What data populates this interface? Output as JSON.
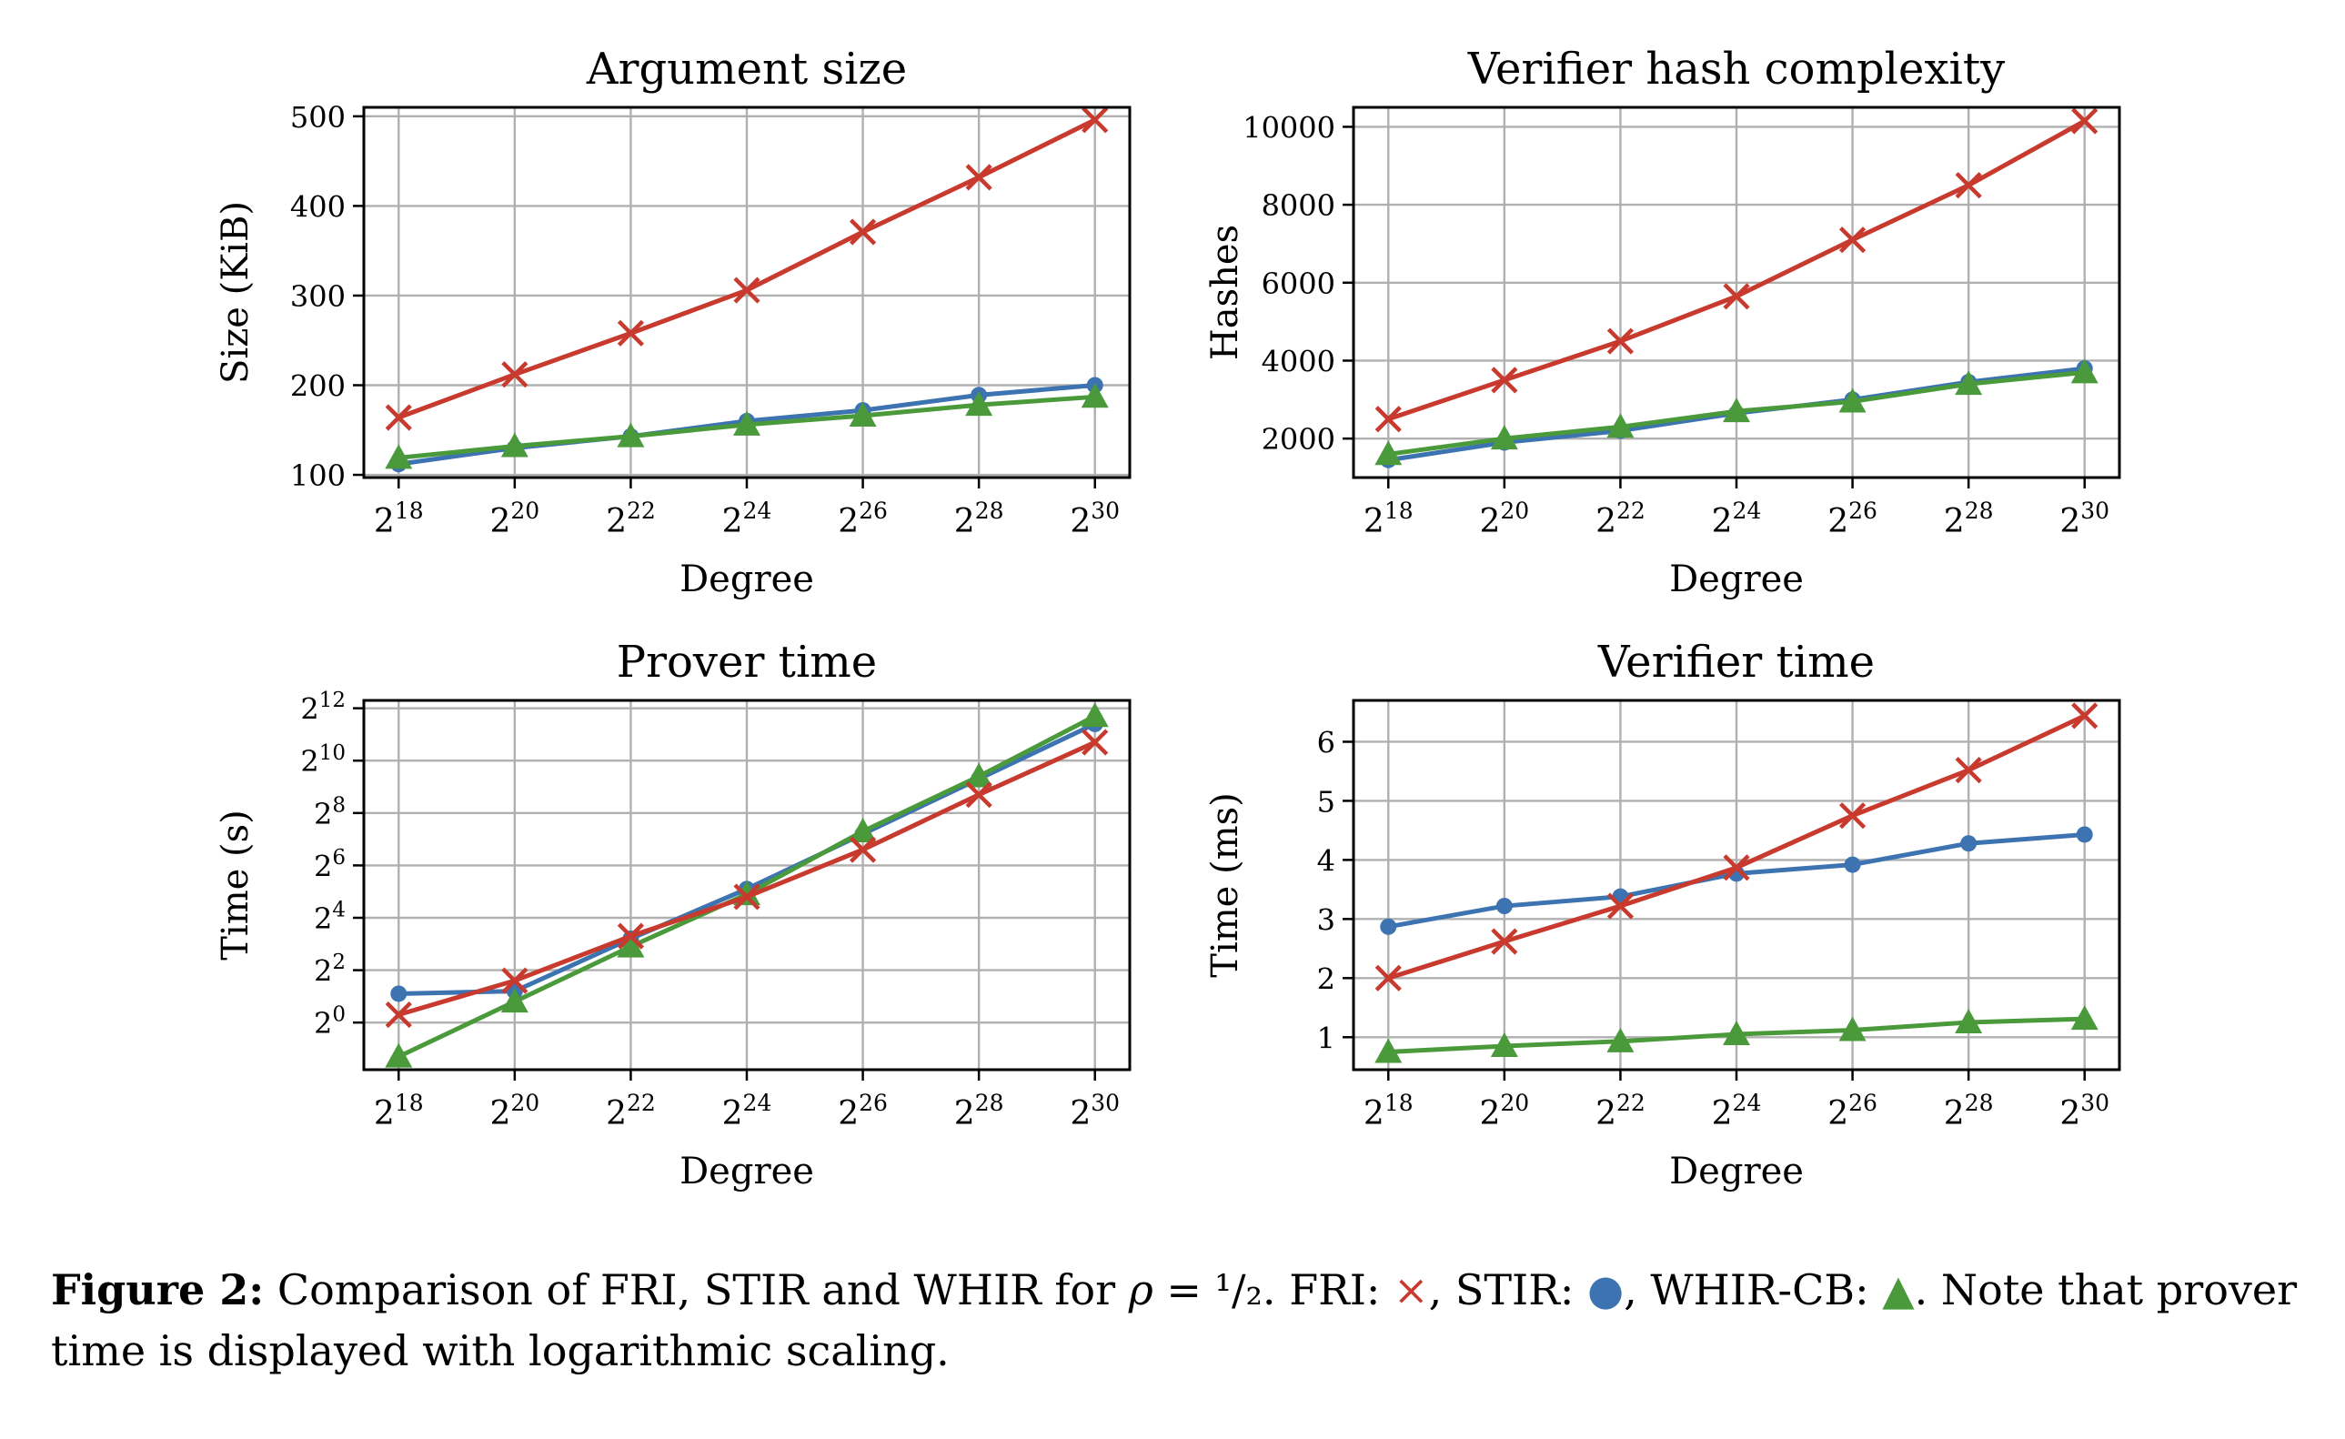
{
  "colors": {
    "fri": "#c8392e",
    "stir": "#3c73b0",
    "whir": "#4a9a3c",
    "grid": "#b0b0b0"
  },
  "chart_data": [
    {
      "type": "line",
      "title": "Argument size",
      "xlabel": "Degree",
      "ylabel": "Size (KiB)",
      "x": [
        18,
        20,
        22,
        24,
        26,
        28,
        30
      ],
      "x_tick_labels": [
        [
          "2",
          "18"
        ],
        [
          "2",
          "20"
        ],
        [
          "2",
          "22"
        ],
        [
          "2",
          "24"
        ],
        [
          "2",
          "26"
        ],
        [
          "2",
          "28"
        ],
        [
          "2",
          "30"
        ]
      ],
      "xlim": [
        17.4,
        30.6
      ],
      "ylim": [
        97,
        510
      ],
      "y_ticks": [
        100,
        200,
        300,
        400,
        500
      ],
      "y_tick_labels": [
        [
          "100",
          ""
        ],
        [
          "200",
          ""
        ],
        [
          "300",
          ""
        ],
        [
          "400",
          ""
        ],
        [
          "500",
          ""
        ]
      ],
      "grid": true,
      "series": [
        {
          "key": "stir",
          "marker": "dot",
          "values": [
            112,
            130,
            143,
            160,
            172,
            189,
            200
          ]
        },
        {
          "key": "whir",
          "marker": "triangle",
          "values": [
            119,
            132,
            143,
            156,
            166,
            178,
            187
          ]
        },
        {
          "key": "fri",
          "marker": "x",
          "values": [
            164,
            212,
            258,
            306,
            371,
            432,
            496
          ]
        }
      ]
    },
    {
      "type": "line",
      "title": "Verifier hash complexity",
      "xlabel": "Degree",
      "ylabel": "Hashes",
      "x": [
        18,
        20,
        22,
        24,
        26,
        28,
        30
      ],
      "x_tick_labels": [
        [
          "2",
          "18"
        ],
        [
          "2",
          "20"
        ],
        [
          "2",
          "22"
        ],
        [
          "2",
          "24"
        ],
        [
          "2",
          "26"
        ],
        [
          "2",
          "28"
        ],
        [
          "2",
          "30"
        ]
      ],
      "xlim": [
        17.4,
        30.6
      ],
      "ylim": [
        1000,
        10500
      ],
      "y_ticks": [
        2000,
        4000,
        6000,
        8000,
        10000
      ],
      "y_tick_labels": [
        [
          "2000",
          ""
        ],
        [
          "4000",
          ""
        ],
        [
          "6000",
          ""
        ],
        [
          "8000",
          ""
        ],
        [
          "10000",
          ""
        ]
      ],
      "grid": true,
      "series": [
        {
          "key": "stir",
          "marker": "dot",
          "values": [
            1450,
            1900,
            2200,
            2650,
            3000,
            3450,
            3800
          ]
        },
        {
          "key": "whir",
          "marker": "triangle",
          "values": [
            1600,
            2000,
            2300,
            2700,
            2950,
            3400,
            3700
          ]
        },
        {
          "key": "fri",
          "marker": "x",
          "values": [
            2500,
            3500,
            4500,
            5650,
            7100,
            8500,
            10150
          ]
        }
      ]
    },
    {
      "type": "line",
      "title": "Prover time",
      "xlabel": "Degree",
      "ylabel": "Time (s)",
      "log_scale_y": 2,
      "x": [
        18,
        20,
        22,
        24,
        26,
        28,
        30
      ],
      "x_tick_labels": [
        [
          "2",
          "18"
        ],
        [
          "2",
          "20"
        ],
        [
          "2",
          "22"
        ],
        [
          "2",
          "24"
        ],
        [
          "2",
          "26"
        ],
        [
          "2",
          "28"
        ],
        [
          "2",
          "30"
        ]
      ],
      "xlim": [
        17.4,
        30.6
      ],
      "ylim": [
        -1.8,
        12.3
      ],
      "y_ticks": [
        0,
        2,
        4,
        6,
        8,
        10,
        12
      ],
      "y_tick_labels": [
        [
          "2",
          "0"
        ],
        [
          "2",
          "2"
        ],
        [
          "2",
          "4"
        ],
        [
          "2",
          "6"
        ],
        [
          "2",
          "8"
        ],
        [
          "2",
          "10"
        ],
        [
          "2",
          "12"
        ]
      ],
      "grid": true,
      "series": [
        {
          "key": "stir",
          "marker": "dot",
          "values": [
            1.1,
            1.2,
            3.2,
            5.1,
            7.2,
            9.3,
            11.4
          ]
        },
        {
          "key": "whir",
          "marker": "triangle",
          "values": [
            -1.3,
            0.8,
            2.9,
            4.9,
            7.3,
            9.4,
            11.7
          ]
        },
        {
          "key": "fri",
          "marker": "x",
          "values": [
            0.3,
            1.6,
            3.3,
            4.8,
            6.6,
            8.7,
            10.7
          ]
        }
      ]
    },
    {
      "type": "line",
      "title": "Verifier time",
      "xlabel": "Degree",
      "ylabel": "Time (ms)",
      "x": [
        18,
        20,
        22,
        24,
        26,
        28,
        30
      ],
      "x_tick_labels": [
        [
          "2",
          "18"
        ],
        [
          "2",
          "20"
        ],
        [
          "2",
          "22"
        ],
        [
          "2",
          "24"
        ],
        [
          "2",
          "26"
        ],
        [
          "2",
          "28"
        ],
        [
          "2",
          "30"
        ]
      ],
      "xlim": [
        17.4,
        30.6
      ],
      "ylim": [
        0.45,
        6.7
      ],
      "y_ticks": [
        1,
        2,
        3,
        4,
        5,
        6
      ],
      "y_tick_labels": [
        [
          "1",
          ""
        ],
        [
          "2",
          ""
        ],
        [
          "3",
          ""
        ],
        [
          "4",
          ""
        ],
        [
          "5",
          ""
        ],
        [
          "6",
          ""
        ]
      ],
      "grid": true,
      "series": [
        {
          "key": "stir",
          "marker": "dot",
          "values": [
            2.87,
            3.22,
            3.38,
            3.77,
            3.92,
            4.28,
            4.43
          ]
        },
        {
          "key": "whir",
          "marker": "triangle",
          "values": [
            0.75,
            0.85,
            0.93,
            1.05,
            1.12,
            1.25,
            1.31
          ]
        },
        {
          "key": "fri",
          "marker": "x",
          "values": [
            2.0,
            2.62,
            3.22,
            3.87,
            4.75,
            5.52,
            6.44
          ]
        }
      ]
    }
  ],
  "caption": {
    "label": "Figure 2:",
    "line1_a": "Comparison of FRI, STIR and WHIR for",
    "rho": "ρ",
    "line1_b": "= ¹/₂.",
    "fri_label": "FRI:",
    "fri_mark": "×",
    "sep1": ",",
    "stir_label": "STIR:",
    "stir_mark": "●",
    "sep2": ",",
    "whir_label": "WHIR-CB:",
    "whir_mark": "▲",
    "note": ". Note that prover time is displayed with logarithmic scaling."
  }
}
